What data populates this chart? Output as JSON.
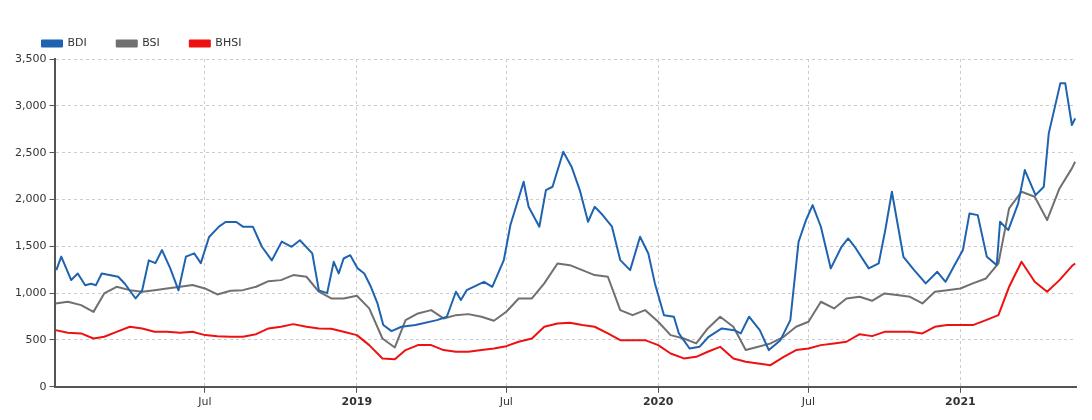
{
  "chart_data": {
    "type": "line",
    "legend": "top left",
    "grid": true,
    "marker": "none",
    "line_style": "solid",
    "xlim": [
      "2018-01-01",
      "2021-05-21"
    ],
    "xticks": [
      {
        "value": "2018-07-01",
        "label": "Jul"
      },
      {
        "value": "2019-01-01",
        "label": "2019"
      },
      {
        "value": "2019-07-01",
        "label": "Jul"
      },
      {
        "value": "2020-01-01",
        "label": "2020"
      },
      {
        "value": "2020-07-01",
        "label": "Jul"
      },
      {
        "value": "2021-01-01",
        "label": "2021"
      }
    ],
    "ylim": [
      0,
      3500
    ],
    "yticks": [
      0,
      500,
      {
        "value": 1000,
        "label": "1,000"
      },
      {
        "value": 1500,
        "label": "1,500"
      },
      {
        "value": 2000,
        "label": "2,000"
      },
      {
        "value": 2500,
        "label": "2,500"
      },
      {
        "value": 3000,
        "label": "3,000"
      },
      {
        "value": 3500,
        "label": "3,500"
      }
    ],
    "x": [
      "2018-01-01",
      "2018-01-16",
      "2018-02-01",
      "2018-02-16",
      "2018-03-01",
      "2018-03-16",
      "2018-04-01",
      "2018-04-16",
      "2018-05-01",
      "2018-05-16",
      "2018-06-01",
      "2018-06-16",
      "2018-07-01",
      "2018-07-16",
      "2018-08-01",
      "2018-08-16",
      "2018-09-01",
      "2018-09-16",
      "2018-10-01",
      "2018-10-16",
      "2018-11-01",
      "2018-11-16",
      "2018-12-01",
      "2018-12-16",
      "2019-01-01",
      "2019-01-16",
      "2019-02-01",
      "2019-02-16",
      "2019-03-01",
      "2019-03-16",
      "2019-04-01",
      "2019-04-16",
      "2019-05-01",
      "2019-05-16",
      "2019-06-01",
      "2019-06-16",
      "2019-07-01",
      "2019-07-16",
      "2019-08-01",
      "2019-08-16",
      "2019-09-01",
      "2019-09-16",
      "2019-10-01",
      "2019-10-16",
      "2019-11-01",
      "2019-11-16",
      "2019-12-01",
      "2019-12-16",
      "2020-01-01",
      "2020-01-16",
      "2020-02-01",
      "2020-02-16",
      "2020-03-01",
      "2020-03-16",
      "2020-04-01",
      "2020-04-16",
      "2020-05-01",
      "2020-05-16",
      "2020-06-01",
      "2020-06-16",
      "2020-07-01",
      "2020-07-16",
      "2020-08-01",
      "2020-08-16",
      "2020-09-01",
      "2020-09-16",
      "2020-10-01",
      "2020-10-16",
      "2020-11-01",
      "2020-11-16",
      "2020-12-01",
      "2020-12-16",
      "2021-01-01",
      "2021-01-16",
      "2021-02-01",
      "2021-02-16",
      "2021-03-01",
      "2021-03-16",
      "2021-04-01",
      "2021-04-16",
      "2021-05-01",
      "2021-05-16",
      "2021-05-20"
    ],
    "series": [
      {
        "name": "BDI",
        "color": "#1f63b0",
        "x": [
          "2018-01-02",
          "2018-01-08",
          "2018-01-20",
          "2018-01-28",
          "2018-02-06",
          "2018-02-13",
          "2018-02-19",
          "2018-02-26",
          "2018-03-18",
          "2018-03-26",
          "2018-04-08",
          "2018-04-16",
          "2018-04-24",
          "2018-05-02",
          "2018-05-10",
          "2018-05-20",
          "2018-05-30",
          "2018-06-08",
          "2018-06-18",
          "2018-06-26",
          "2018-07-06",
          "2018-07-18",
          "2018-07-26",
          "2018-08-08",
          "2018-08-16",
          "2018-08-28",
          "2018-09-08",
          "2018-09-20",
          "2018-10-02",
          "2018-10-14",
          "2018-10-24",
          "2018-11-08",
          "2018-11-16",
          "2018-11-26",
          "2018-12-04",
          "2018-12-10",
          "2018-12-16",
          "2018-12-24",
          "2019-01-02",
          "2019-01-10",
          "2019-01-18",
          "2019-01-26",
          "2019-02-02",
          "2019-02-12",
          "2019-02-24",
          "2019-03-13",
          "2019-04-08",
          "2019-04-20",
          "2019-05-01",
          "2019-05-07",
          "2019-05-14",
          "2019-06-04",
          "2019-06-14",
          "2019-06-28",
          "2019-07-06",
          "2019-07-22",
          "2019-07-28",
          "2019-08-10",
          "2019-08-18",
          "2019-08-26",
          "2019-09-08",
          "2019-09-18",
          "2019-09-28",
          "2019-10-08",
          "2019-10-16",
          "2019-10-24",
          "2019-11-06",
          "2019-11-16",
          "2019-11-28",
          "2019-12-10",
          "2019-12-20",
          "2019-12-28",
          "2020-01-08",
          "2020-01-20",
          "2020-01-26",
          "2020-02-08",
          "2020-02-20",
          "2020-03-02",
          "2020-03-18",
          "2020-04-02",
          "2020-04-10",
          "2020-04-20",
          "2020-05-03",
          "2020-05-14",
          "2020-05-28",
          "2020-06-09",
          "2020-06-19",
          "2020-06-28",
          "2020-07-06",
          "2020-07-16",
          "2020-07-28",
          "2020-08-10",
          "2020-08-18",
          "2020-08-26",
          "2020-09-12",
          "2020-09-24",
          "2020-10-02",
          "2020-10-10",
          "2020-10-24",
          "2020-11-06",
          "2020-11-20",
          "2020-12-04",
          "2020-12-14",
          "2020-12-26",
          "2021-01-04",
          "2021-01-12",
          "2021-01-22",
          "2021-02-02",
          "2021-02-14",
          "2021-02-18",
          "2021-02-28",
          "2021-03-12",
          "2021-03-20",
          "2021-04-02",
          "2021-04-12",
          "2021-04-18",
          "2021-05-02",
          "2021-05-08",
          "2021-05-16",
          "2021-05-20"
        ],
        "values": [
          1246,
          1390,
          1140,
          1210,
          1085,
          1100,
          1085,
          1210,
          1175,
          1100,
          943,
          1030,
          1350,
          1320,
          1460,
          1264,
          1030,
          1390,
          1425,
          1320,
          1600,
          1710,
          1760,
          1760,
          1710,
          1710,
          1495,
          1350,
          1550,
          1495,
          1565,
          1425,
          1030,
          1000,
          1335,
          1210,
          1370,
          1405,
          1264,
          1210,
          1068,
          890,
          660,
          595,
          641,
          659,
          712,
          748,
          1015,
          926,
          1032,
          1121,
          1068,
          1353,
          1727,
          2189,
          1922,
          1709,
          2100,
          2136,
          2510,
          2350,
          2100,
          1762,
          1922,
          1851,
          1709,
          1353,
          1246,
          1602,
          1424,
          1104,
          765,
          748,
          570,
          409,
          427,
          534,
          623,
          605,
          570,
          748,
          605,
          392,
          498,
          712,
          1549,
          1780,
          1940,
          1709,
          1264,
          1495,
          1584,
          1495,
          1264,
          1317,
          1673,
          2083,
          1388,
          1246,
          1104,
          1228,
          1121,
          1317,
          1460,
          1851,
          1833,
          1388,
          1299,
          1762,
          1673,
          1958,
          2314,
          2047,
          2136,
          2706,
          3240,
          3240,
          2795,
          2866
        ]
      },
      {
        "name": "BSI",
        "color": "#707070",
        "values": [
          890,
          908,
          872,
          800,
          997,
          1068,
          1032,
          1015,
          1032,
          1050,
          1068,
          1086,
          1050,
          986,
          1025,
          1032,
          1068,
          1128,
          1139,
          1193,
          1175,
          1015,
          943,
          943,
          972,
          837,
          516,
          420,
          712,
          783,
          819,
          730,
          765,
          776,
          748,
          705,
          801,
          943,
          943,
          1104,
          1317,
          1299,
          1246,
          1193,
          1175,
          819,
          765,
          819,
          694,
          552,
          516,
          463,
          623,
          748,
          641,
          392,
          427,
          463,
          534,
          641,
          694,
          908,
          837,
          943,
          961,
          918,
          997,
          979,
          961,
          890,
          1015,
          1032,
          1050,
          1104,
          1157,
          1317,
          1905,
          2083,
          2029,
          1780,
          2118,
          2332,
          2403
        ]
      },
      {
        "name": "BHSI",
        "color": "#ee1111",
        "values": [
          605,
          577,
          570,
          516,
          534,
          587,
          641,
          623,
          587,
          587,
          577,
          587,
          552,
          541,
          534,
          534,
          562,
          623,
          641,
          669,
          641,
          623,
          620,
          587,
          552,
          445,
          303,
          295,
          392,
          445,
          445,
          392,
          374,
          374,
          392,
          409,
          434,
          481,
          516,
          641,
          676,
          683,
          659,
          641,
          570,
          498,
          498,
          498,
          445,
          356,
          303,
          320,
          374,
          427,
          303,
          267,
          249,
          231,
          320,
          392,
          409,
          445,
          463,
          481,
          562,
          541,
          587,
          587,
          587,
          570,
          641,
          659,
          659,
          659,
          712,
          765,
          1068,
          1335,
          1121,
          1015,
          1139,
          1289,
          1317
        ]
      }
    ]
  }
}
